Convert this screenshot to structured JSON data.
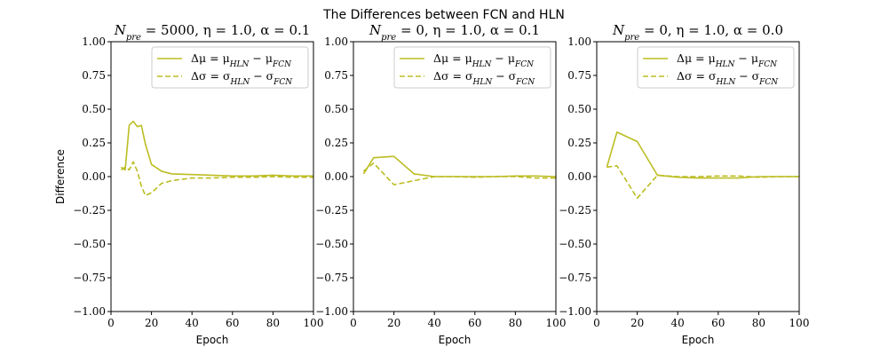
{
  "suptitle": "The Differences between FCN and HLN",
  "colors": {
    "line": "#bcbd22",
    "axes": "#000000",
    "legend_border": "#cccccc"
  },
  "chart_data": [
    {
      "type": "line",
      "title": "N_pre = 5000, η = 1.0, α = 0.1",
      "title_parts": {
        "n_value": "5000",
        "eta": "1.0",
        "alpha": "0.1"
      },
      "xlabel": "Epoch",
      "ylabel": "Difference",
      "xlim": [
        0,
        100
      ],
      "ylim": [
        -1.0,
        1.0
      ],
      "xticks": [
        "0",
        "20",
        "40",
        "60",
        "80",
        "100"
      ],
      "yticks": [
        "−1.00",
        "−0.75",
        "−0.50",
        "−0.25",
        "0.00",
        "0.25",
        "0.50",
        "0.75",
        "1.00"
      ],
      "grid": false,
      "legend_position": "top-right",
      "series": [
        {
          "name": "Δμ = μ_HLN − μ_FCN",
          "style": "solid",
          "x": [
            5,
            7,
            9,
            11,
            13,
            15,
            17,
            20,
            25,
            30,
            40,
            50,
            60,
            70,
            80,
            90,
            100
          ],
          "y": [
            0.07,
            0.05,
            0.38,
            0.41,
            0.37,
            0.38,
            0.24,
            0.09,
            0.04,
            0.02,
            0.015,
            0.01,
            0.005,
            0.005,
            0.01,
            0.005,
            0.005
          ]
        },
        {
          "name": "Δσ = σ_HLN − σ_FCN",
          "style": "dashed",
          "x": [
            5,
            7,
            9,
            11,
            13,
            15,
            17,
            20,
            25,
            30,
            40,
            50,
            60,
            70,
            80,
            90,
            100
          ],
          "y": [
            0.05,
            0.07,
            0.05,
            0.11,
            0.04,
            -0.07,
            -0.14,
            -0.12,
            -0.05,
            -0.03,
            -0.01,
            -0.01,
            -0.005,
            -0.005,
            0.0,
            -0.005,
            -0.005
          ]
        }
      ]
    },
    {
      "type": "line",
      "title": "N_pre = 0, η = 1.0, α = 0.1",
      "title_parts": {
        "n_value": "0",
        "eta": "1.0",
        "alpha": "0.1"
      },
      "xlabel": "Epoch",
      "ylabel": "",
      "xlim": [
        0,
        100
      ],
      "ylim": [
        -1.0,
        1.0
      ],
      "xticks": [
        "0",
        "20",
        "40",
        "60",
        "80",
        "100"
      ],
      "yticks": [
        "−1.00",
        "−0.75",
        "−0.50",
        "−0.25",
        "0.00",
        "0.25",
        "0.50",
        "0.75",
        "1.00"
      ],
      "grid": false,
      "legend_position": "top-right",
      "series": [
        {
          "name": "Δμ = μ_HLN − μ_FCN",
          "style": "solid",
          "x": [
            5,
            10,
            20,
            30,
            40,
            50,
            60,
            70,
            80,
            90,
            100
          ],
          "y": [
            0.02,
            0.14,
            0.15,
            0.02,
            0.0,
            0.0,
            0.0,
            0.0,
            0.005,
            0.005,
            0.0
          ]
        },
        {
          "name": "Δσ = σ_HLN − σ_FCN",
          "style": "dashed",
          "x": [
            5,
            10,
            20,
            30,
            40,
            50,
            60,
            70,
            80,
            90,
            100
          ],
          "y": [
            0.04,
            0.1,
            -0.06,
            -0.03,
            0.0,
            0.0,
            -0.005,
            0.0,
            0.0,
            -0.01,
            -0.01
          ]
        }
      ]
    },
    {
      "type": "line",
      "title": "N_pre = 0, η = 1.0, α = 0.0",
      "title_parts": {
        "n_value": "0",
        "eta": "1.0",
        "alpha": "0.0"
      },
      "xlabel": "Epoch",
      "ylabel": "",
      "xlim": [
        0,
        100
      ],
      "ylim": [
        -1.0,
        1.0
      ],
      "xticks": [
        "0",
        "20",
        "40",
        "60",
        "80",
        "100"
      ],
      "yticks": [
        "−1.00",
        "−0.75",
        "−0.50",
        "−0.25",
        "0.00",
        "0.25",
        "0.50",
        "0.75",
        "1.00"
      ],
      "grid": false,
      "legend_position": "top-right",
      "series": [
        {
          "name": "Δμ = μ_HLN − μ_FCN",
          "style": "solid",
          "x": [
            5,
            10,
            20,
            30,
            40,
            50,
            60,
            70,
            80,
            90,
            100
          ],
          "y": [
            0.07,
            0.33,
            0.26,
            0.01,
            -0.005,
            -0.01,
            -0.01,
            -0.01,
            0.0,
            0.0,
            0.0
          ]
        },
        {
          "name": "Δσ = σ_HLN − σ_FCN",
          "style": "dashed",
          "x": [
            5,
            10,
            20,
            30,
            40,
            50,
            60,
            70,
            80,
            90,
            100
          ],
          "y": [
            0.07,
            0.08,
            -0.16,
            0.01,
            0.0,
            0.0,
            0.005,
            0.005,
            -0.005,
            0.0,
            0.0
          ]
        }
      ]
    }
  ]
}
